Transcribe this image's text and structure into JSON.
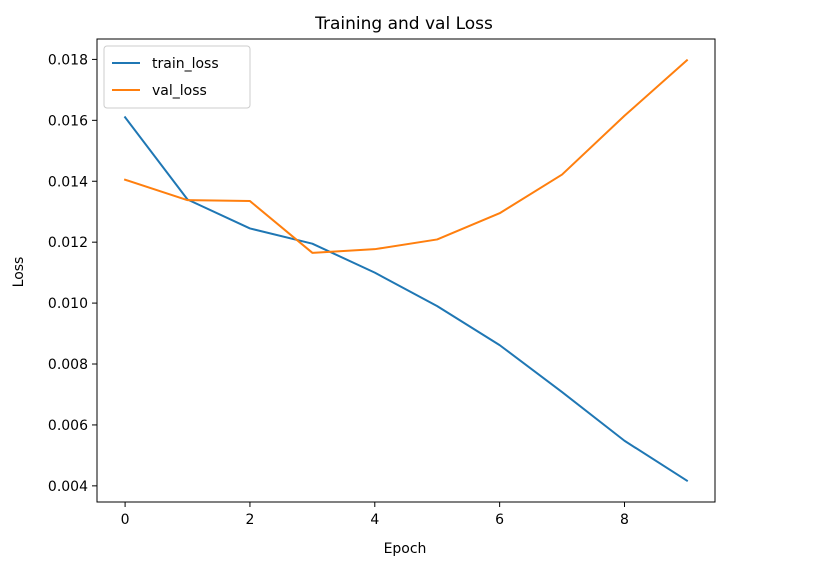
{
  "chart_data": {
    "type": "line",
    "title": "Training and val Loss",
    "xlabel": "Epoch",
    "ylabel": "Loss",
    "x": [
      0,
      1,
      2,
      3,
      4,
      5,
      6,
      7,
      8,
      9
    ],
    "series": [
      {
        "name": "train_loss",
        "color": "#1f77b4",
        "values": [
          0.0161,
          0.0134,
          0.01245,
          0.01195,
          0.011,
          0.0099,
          0.00862,
          0.00708,
          0.00548,
          0.00417
        ]
      },
      {
        "name": "val_loss",
        "color": "#ff7f0e",
        "values": [
          0.01405,
          0.01338,
          0.01335,
          0.01165,
          0.01177,
          0.01209,
          0.01295,
          0.01422,
          0.01615,
          0.01797
        ]
      }
    ],
    "xlim": [
      -0.45,
      9.45
    ],
    "ylim": [
      0.00347,
      0.01867
    ],
    "xticks": [
      0,
      2,
      4,
      6,
      8
    ],
    "xtick_labels": [
      "0",
      "2",
      "4",
      "6",
      "8"
    ],
    "yticks": [
      0.004,
      0.006,
      0.008,
      0.01,
      0.012,
      0.014,
      0.016,
      0.018
    ],
    "ytick_labels": [
      "0.004",
      "0.006",
      "0.008",
      "0.010",
      "0.012",
      "0.014",
      "0.016",
      "0.018"
    ],
    "grid": false,
    "legend_position": "top-left"
  }
}
